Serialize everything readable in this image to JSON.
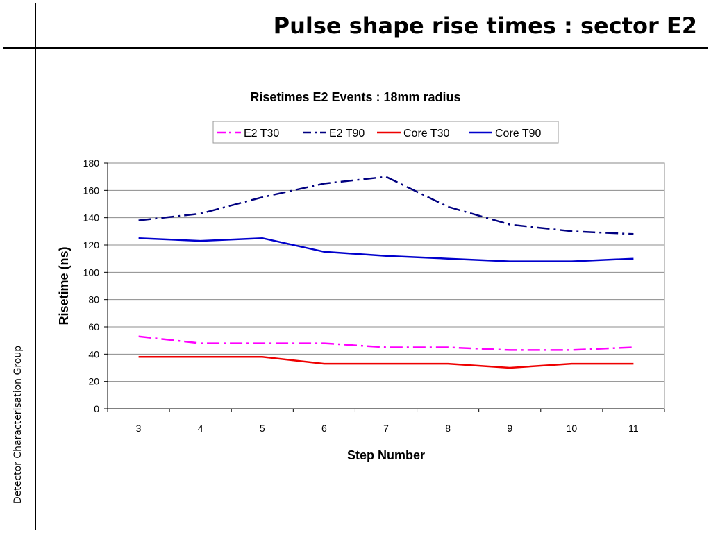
{
  "slide": {
    "title": "Pulse shape rise times : sector E2",
    "side_label": "Detector Characterisation Group"
  },
  "chart_data": {
    "type": "line",
    "title": "Risetimes E2 Events : 18mm radius",
    "xlabel": "Step Number",
    "ylabel": "Risetime (ns)",
    "ylim": [
      0,
      180
    ],
    "yticks": [
      0,
      20,
      40,
      60,
      80,
      100,
      120,
      140,
      160,
      180
    ],
    "categories": [
      "3",
      "4",
      "5",
      "6",
      "7",
      "8",
      "9",
      "10",
      "11"
    ],
    "grid": true,
    "legend_position": "top",
    "series": [
      {
        "name": "E2 T30",
        "color": "#ff00ff",
        "dash": "long-dash-dot",
        "values": [
          53,
          48,
          48,
          48,
          45,
          45,
          43,
          43,
          45
        ]
      },
      {
        "name": "E2 T90",
        "color": "#000080",
        "dash": "long-dash-dot",
        "values": [
          138,
          143,
          155,
          165,
          170,
          148,
          135,
          130,
          128
        ]
      },
      {
        "name": "Core T30",
        "color": "#ee0000",
        "dash": "solid",
        "values": [
          38,
          38,
          38,
          33,
          33,
          33,
          30,
          33,
          33
        ]
      },
      {
        "name": "Core T90",
        "color": "#0000cc",
        "dash": "solid",
        "values": [
          125,
          123,
          125,
          115,
          112,
          110,
          108,
          108,
          110
        ]
      }
    ]
  }
}
